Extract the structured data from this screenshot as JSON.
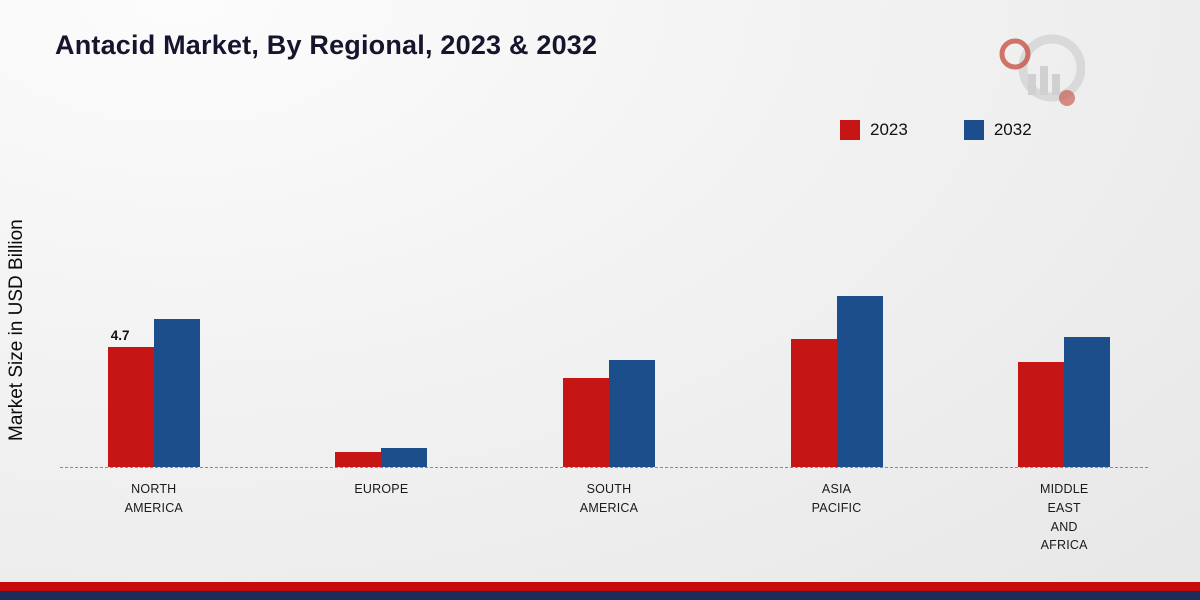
{
  "title": "Antacid Market, By Regional, 2023 & 2032",
  "y_axis_label": "Market Size in USD Billion",
  "legend": {
    "items": [
      {
        "label": "2023",
        "color": "#c51515"
      },
      {
        "label": "2032",
        "color": "#1c4e8c"
      }
    ]
  },
  "chart_data": {
    "type": "bar",
    "title": "Antacid Market, By Regional, 2023 & 2032",
    "xlabel": "",
    "ylabel": "Market Size in USD Billion",
    "ylim": [
      0,
      7
    ],
    "grid": false,
    "legend_position": "top-right",
    "categories": [
      "NORTH\nAMERICA",
      "EUROPE",
      "SOUTH\nAMERICA",
      "ASIA\nPACIFIC",
      "MIDDLE\nEAST\nAND\nAFRICA"
    ],
    "series": [
      {
        "name": "2023",
        "color": "#c51515",
        "values": [
          4.7,
          0.6,
          3.5,
          5.0,
          4.1
        ],
        "data_labels": [
          "4.7",
          "",
          "",
          "",
          ""
        ]
      },
      {
        "name": "2032",
        "color": "#1c4e8c",
        "values": [
          5.8,
          0.75,
          4.2,
          6.7,
          5.1
        ],
        "data_labels": [
          "",
          "",
          "",
          "",
          ""
        ]
      }
    ],
    "annotations": [
      "4.7"
    ]
  },
  "footer": {
    "red_band_color": "#c40d0d",
    "navy_band_color": "#1e2c5c"
  },
  "branding": {
    "logo_name": "market-research-logo",
    "logo_accent_color": "#c0392b",
    "logo_gray_color": "#d2d2d2"
  }
}
